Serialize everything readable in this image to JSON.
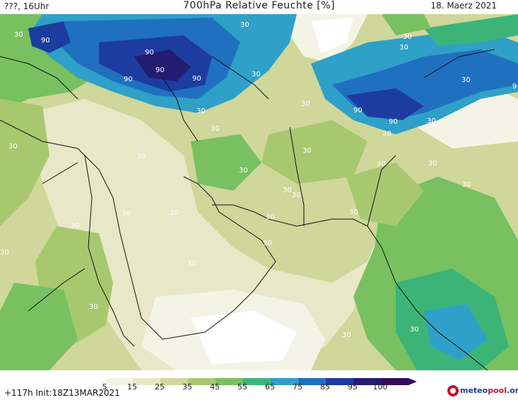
{
  "header": {
    "left": "???, 16Uhr",
    "title": "700hPa Relative Feuchte [%]",
    "date": "18. Maerz 2021"
  },
  "footer": {
    "init": "+117h  Init:18Z13MAR2021",
    "logo_main": "meteo",
    "logo_accent": "pool",
    "logo_suffix": ".org"
  },
  "legend": {
    "ticks": [
      "5",
      "15",
      "25",
      "35",
      "45",
      "55",
      "65",
      "75",
      "85",
      "95",
      "100"
    ],
    "colors": [
      "#ffffff",
      "#f4f4e6",
      "#e8e8c8",
      "#cfd79a",
      "#a8c870",
      "#78c060",
      "#3cb478",
      "#2fa0c8",
      "#2070c0",
      "#1c3ca0",
      "#241c70",
      "#3a0a5a"
    ]
  },
  "map": {
    "contour_labels": [
      "30",
      "90",
      "90",
      "90",
      "90",
      "90",
      "90",
      "90",
      "30",
      "30",
      "30",
      "30",
      "30",
      "30",
      "30",
      "30",
      "30",
      "30",
      "30",
      "30",
      "30",
      "30",
      "30",
      "30",
      "30",
      "30",
      "30",
      "30",
      "30",
      "30",
      "30",
      "30",
      "30",
      "30",
      "30",
      "30",
      "30",
      "30",
      "9"
    ]
  }
}
